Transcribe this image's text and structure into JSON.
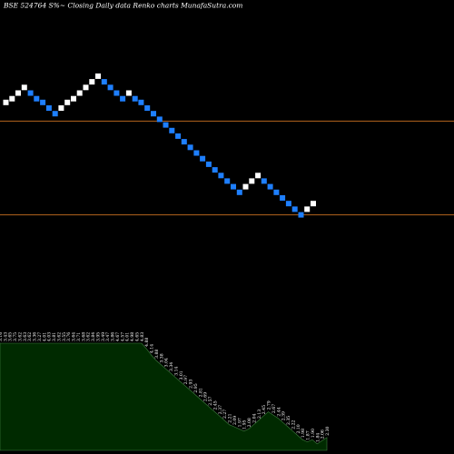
{
  "header": {
    "title": "BSE 524764  S%~  Closing Daily data  Renko  charts MunafaSutra.com"
  },
  "colors": {
    "background": "#000000",
    "up_brick": "#ffffff",
    "down_brick": "#1e7fff",
    "level_line": "#b5651d",
    "volume_fill": "#002a00",
    "volume_edge": "#3f7f3f"
  },
  "chart_data": {
    "type": "renko",
    "price_range": [
      1.85,
      3.45
    ],
    "reference_lines": [
      2.9,
      2.4
    ],
    "bricks": [
      {
        "dir": "up",
        "price": 3.0
      },
      {
        "dir": "up",
        "price": 3.02
      },
      {
        "dir": "up",
        "price": 3.05
      },
      {
        "dir": "up",
        "price": 3.08
      },
      {
        "dir": "down",
        "price": 3.05
      },
      {
        "dir": "down",
        "price": 3.02
      },
      {
        "dir": "down",
        "price": 3.0
      },
      {
        "dir": "down",
        "price": 2.97
      },
      {
        "dir": "down",
        "price": 2.94
      },
      {
        "dir": "up",
        "price": 2.97
      },
      {
        "dir": "up",
        "price": 3.0
      },
      {
        "dir": "up",
        "price": 3.02
      },
      {
        "dir": "up",
        "price": 3.05
      },
      {
        "dir": "up",
        "price": 3.08
      },
      {
        "dir": "up",
        "price": 3.11
      },
      {
        "dir": "up",
        "price": 3.14
      },
      {
        "dir": "down",
        "price": 3.11
      },
      {
        "dir": "down",
        "price": 3.08
      },
      {
        "dir": "down",
        "price": 3.05
      },
      {
        "dir": "down",
        "price": 3.02
      },
      {
        "dir": "up",
        "price": 3.05
      },
      {
        "dir": "down",
        "price": 3.02
      },
      {
        "dir": "down",
        "price": 3.0
      },
      {
        "dir": "down",
        "price": 2.97
      },
      {
        "dir": "down",
        "price": 2.94
      },
      {
        "dir": "down",
        "price": 2.91
      },
      {
        "dir": "down",
        "price": 2.88
      },
      {
        "dir": "down",
        "price": 2.85
      },
      {
        "dir": "down",
        "price": 2.82
      },
      {
        "dir": "down",
        "price": 2.79
      },
      {
        "dir": "down",
        "price": 2.76
      },
      {
        "dir": "down",
        "price": 2.73
      },
      {
        "dir": "down",
        "price": 2.7
      },
      {
        "dir": "down",
        "price": 2.67
      },
      {
        "dir": "down",
        "price": 2.64
      },
      {
        "dir": "down",
        "price": 2.61
      },
      {
        "dir": "down",
        "price": 2.58
      },
      {
        "dir": "down",
        "price": 2.55
      },
      {
        "dir": "down",
        "price": 2.52
      },
      {
        "dir": "up",
        "price": 2.55
      },
      {
        "dir": "up",
        "price": 2.58
      },
      {
        "dir": "up",
        "price": 2.61
      },
      {
        "dir": "down",
        "price": 2.58
      },
      {
        "dir": "down",
        "price": 2.55
      },
      {
        "dir": "down",
        "price": 2.52
      },
      {
        "dir": "down",
        "price": 2.49
      },
      {
        "dir": "down",
        "price": 2.46
      },
      {
        "dir": "down",
        "price": 2.43
      },
      {
        "dir": "down",
        "price": 2.4
      },
      {
        "dir": "up",
        "price": 2.43
      },
      {
        "dir": "up",
        "price": 2.46
      }
    ],
    "volume_panel": {
      "value_labels": [
        "3.16",
        "3.43",
        "3.65",
        "3.75",
        "3.62",
        "3.63",
        "3.62",
        "3.36",
        "3.27",
        "4.01",
        "4.03",
        "3.81",
        "3.62",
        "3.55",
        "3.76",
        "3.64",
        "3.71",
        "3.68",
        "3.62",
        "3.84",
        "3.95",
        "3.49",
        "3.47",
        "3.86",
        "4.67",
        "4.57",
        "4.01",
        "4.98",
        "4.65",
        "4.83",
        "4.88",
        "4.14",
        "3.88",
        "3.38",
        "3.04",
        "3.34",
        "3.14",
        "3.01",
        "2.97",
        "2.93",
        "2.95",
        "2.81",
        "2.69",
        "2.57",
        "2.45",
        "2.37",
        "2.27",
        "2.21",
        "2.09",
        "1.97",
        "1.95",
        "2.08",
        "2.04",
        "2.13",
        "2.45",
        "2.79",
        "2.67",
        "2.44",
        "2.39",
        "2.35",
        "2.22",
        "2.10",
        "1.98",
        "1.87",
        "1.90",
        "1.84",
        "2.06",
        "2.30"
      ],
      "level": [
        1,
        1,
        1,
        1,
        1,
        1,
        1,
        1,
        1,
        1,
        1,
        1,
        1,
        1,
        1,
        1,
        1,
        1,
        1,
        1,
        1,
        1,
        1,
        1,
        1,
        1,
        1,
        1,
        1,
        1,
        0.95,
        0.89,
        0.84,
        0.8,
        0.76,
        0.72,
        0.68,
        0.64,
        0.6,
        0.56,
        0.52,
        0.48,
        0.44,
        0.4,
        0.36,
        0.32,
        0.28,
        0.24,
        0.22,
        0.2,
        0.18,
        0.2,
        0.24,
        0.28,
        0.32,
        0.36,
        0.33,
        0.3,
        0.26,
        0.22,
        0.18,
        0.14,
        0.1,
        0.08,
        0.1,
        0.06,
        0.09,
        0.12
      ]
    }
  }
}
